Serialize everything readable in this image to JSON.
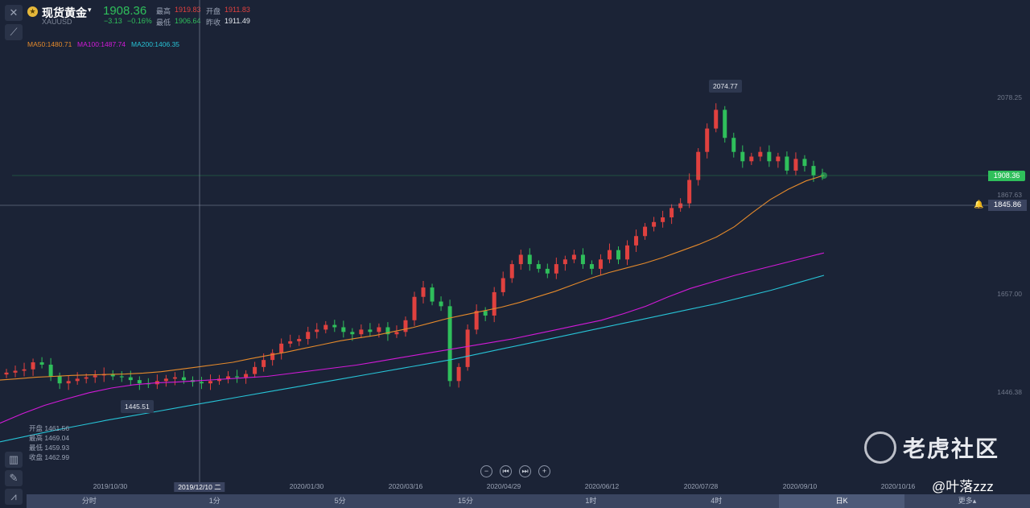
{
  "header": {
    "name": "现货黄金",
    "symbol": "XAUUSD",
    "price": "1908.36",
    "change": "−3.13",
    "change_pct": "−0.16%",
    "labels": {
      "high": "最高",
      "open": "开盘",
      "low": "最低",
      "prev_close": "昨收"
    },
    "high": "1919.83",
    "open": "1911.83",
    "low": "1906.64",
    "prev_close": "1911.49"
  },
  "ma": {
    "ma50": "MA50:1480.71",
    "ma100": "MA100:1487.74",
    "ma200": "MA200:1406.35"
  },
  "ohlc_box": {
    "open": "开盘 1461.56",
    "high": "最高 1469.04",
    "low": "最低 1459.93",
    "close": "收盘 1462.99"
  },
  "crosshair": {
    "x_label": "2019/12/10 二",
    "y_label": "1845.86"
  },
  "price_tag": "1908.36",
  "annotations": {
    "max": "2074.77",
    "min": "1445.51"
  },
  "tabs": [
    "分时",
    "1分",
    "5分",
    "15分",
    "1时",
    "4时",
    "日K",
    "更多▴"
  ],
  "active_tab": "日K",
  "watermark": {
    "brand": "老虎社区",
    "user": "@叶落zzz"
  },
  "colors": {
    "up": "#e0413f",
    "down": "#2fbf5b",
    "ma50": "#e58a2b",
    "ma100": "#d21ad8",
    "ma200": "#27c3d6"
  },
  "chart_data": {
    "type": "candlestick",
    "y_ticks": [
      "2078.25",
      "1867.63",
      "1657.00",
      "1446.38"
    ],
    "x_ticks": [
      "2019/10/30",
      "2020/01/30",
      "2020/03/16",
      "2020/04/29",
      "2020/06/12",
      "2020/07/28",
      "2020/09/10",
      "2020/10/16"
    ],
    "close": [
      1488,
      1492,
      1495,
      1510,
      1505,
      1480,
      1465,
      1470,
      1475,
      1478,
      1482,
      1485,
      1480,
      1478,
      1472,
      1465,
      1463,
      1470,
      1475,
      1478,
      1472,
      1468,
      1465,
      1470,
      1475,
      1480,
      1478,
      1485,
      1500,
      1515,
      1530,
      1550,
      1555,
      1560,
      1575,
      1580,
      1590,
      1585,
      1575,
      1570,
      1580,
      1575,
      1585,
      1570,
      1575,
      1600,
      1650,
      1670,
      1640,
      1630,
      1470,
      1500,
      1580,
      1620,
      1610,
      1660,
      1690,
      1720,
      1740,
      1720,
      1710,
      1700,
      1720,
      1730,
      1740,
      1720,
      1710,
      1730,
      1750,
      1730,
      1760,
      1780,
      1800,
      1810,
      1820,
      1840,
      1850,
      1900,
      1960,
      2010,
      2050,
      1990,
      1960,
      1940,
      1950,
      1960,
      1940,
      1950,
      1920,
      1945,
      1930,
      1910,
      1908
    ],
    "ma50": [
      1472,
      1475,
      1478,
      1480,
      1482,
      1483,
      1484,
      1485,
      1487,
      1490,
      1495,
      1500,
      1505,
      1510,
      1518,
      1525,
      1532,
      1540,
      1548,
      1556,
      1562,
      1568,
      1576,
      1584,
      1594,
      1604,
      1612,
      1620,
      1628,
      1638,
      1650,
      1662,
      1676,
      1690,
      1702,
      1712,
      1722,
      1734,
      1748,
      1762,
      1778,
      1800,
      1830,
      1858,
      1880,
      1898,
      1910
    ],
    "ma100": [
      1380,
      1400,
      1418,
      1432,
      1445,
      1455,
      1462,
      1466,
      1468,
      1471,
      1474,
      1477,
      1480,
      1486,
      1492,
      1498,
      1504,
      1512,
      1520,
      1528,
      1536,
      1544,
      1552,
      1560,
      1570,
      1580,
      1590,
      1600,
      1614,
      1630,
      1650,
      1668,
      1682,
      1696,
      1708,
      1720,
      1732,
      1744
    ],
    "ma200": [
      1340,
      1352,
      1364,
      1375,
      1386,
      1396,
      1406,
      1416,
      1426,
      1436,
      1446,
      1456,
      1466,
      1476,
      1486,
      1496,
      1506,
      1516,
      1528,
      1540,
      1552,
      1564,
      1576,
      1588,
      1600,
      1612,
      1624,
      1636,
      1650,
      1664,
      1680,
      1696
    ]
  }
}
